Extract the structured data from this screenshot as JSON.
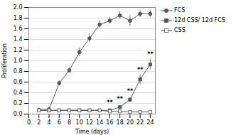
{
  "chart_data": {
    "type": "line",
    "xlabel": "Time (days)",
    "ylabel": "Proliferation",
    "xlim": [
      0,
      25
    ],
    "ylim": [
      0,
      2
    ],
    "xticks": [
      0,
      2,
      4,
      6,
      8,
      10,
      12,
      14,
      16,
      18,
      20,
      22,
      24
    ],
    "yticks": [
      {
        "value": 0,
        "label": "0.0"
      },
      0.2,
      0.4,
      0.6,
      0.8,
      {
        "value": 1,
        "label": "1.0"
      },
      1.2,
      1.4,
      1.6,
      1.8,
      {
        "value": 2,
        "label": "2.0"
      }
    ],
    "grid": "y",
    "legend": "right",
    "x": [
      2,
      4,
      6,
      8,
      10,
      12,
      14,
      16,
      18,
      20,
      22,
      24
    ],
    "series": [
      {
        "name": "FCS",
        "color": "#555555",
        "marker": "circle",
        "values": [
          0.08,
          0.09,
          0.58,
          0.82,
          1.16,
          1.42,
          1.68,
          1.75,
          1.85,
          1.75,
          1.88,
          1.88
        ],
        "errors": [
          0.01,
          0.01,
          0.05,
          0.05,
          0.08,
          0.08,
          0.07,
          0.06,
          0.07,
          0.1,
          0.07,
          0.06
        ]
      },
      {
        "name": "12d CSS/ 12d FCS",
        "color": "#555555",
        "marker": "square",
        "values": [
          0.07,
          0.07,
          0.07,
          0.07,
          0.07,
          0.07,
          0.07,
          0.07,
          0.13,
          0.27,
          0.65,
          0.93
        ],
        "errors": [
          0.005,
          0.005,
          0.005,
          0.005,
          0.005,
          0.005,
          0.005,
          0.01,
          0.03,
          0.05,
          0.09,
          0.1
        ]
      },
      {
        "name": "CSS",
        "color": "#555555",
        "marker": "open_square",
        "values": [
          0.07,
          0.07,
          0.07,
          0.07,
          0.07,
          0.07,
          0.07,
          0.05,
          0.05,
          0.04,
          0.04,
          0.04
        ],
        "errors": [
          0.005,
          0.005,
          0.005,
          0.005,
          0.005,
          0.005,
          0.005,
          0.005,
          0.005,
          0.005,
          0.005,
          0.005
        ]
      }
    ],
    "annotations": [
      {
        "x": 16,
        "y": 0.17,
        "text": "**"
      },
      {
        "x": 18,
        "y": 0.24,
        "text": "**"
      },
      {
        "x": 20,
        "y": 0.38,
        "text": "**"
      },
      {
        "x": 22,
        "y": 0.78,
        "text": "**"
      },
      {
        "x": 24,
        "y": 1.08,
        "text": "**"
      }
    ]
  }
}
